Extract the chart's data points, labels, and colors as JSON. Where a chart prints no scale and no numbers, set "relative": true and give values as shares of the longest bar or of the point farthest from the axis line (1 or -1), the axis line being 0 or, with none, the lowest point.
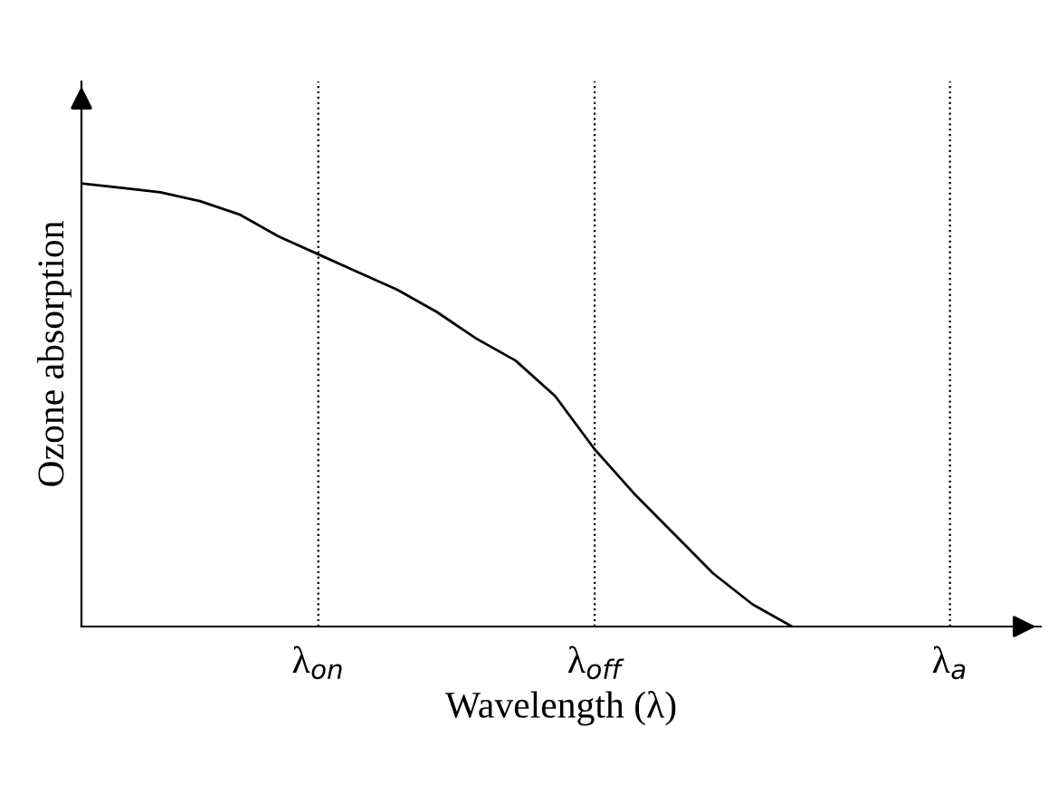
{
  "chart_data": {
    "type": "line",
    "relative": true,
    "xlabel": "Wavelength (λ)",
    "ylabel": "Ozone absorption",
    "categories": [
      null,
      null,
      null,
      null,
      null,
      null,
      "λ$_{on}$",
      null,
      null,
      null,
      null,
      null,
      null,
      "λ$_{off}$",
      null,
      null,
      null,
      null,
      null,
      null,
      null,
      null,
      "λ$_{a}$",
      null,
      null
    ],
    "series": [
      {
        "color": "#000000",
        "values": [
          1.0,
          0.99,
          0.98,
          0.96,
          0.93,
          0.88,
          0.84,
          0.8,
          0.76,
          0.71,
          0.65,
          0.6,
          0.52,
          0.4,
          0.3,
          0.21,
          0.12,
          0.05,
          0,
          null,
          null,
          null,
          null,
          null,
          null
        ]
      }
    ],
    "grid": "x",
    "legend": false,
    "marker": "none",
    "line_style": "solid"
  }
}
